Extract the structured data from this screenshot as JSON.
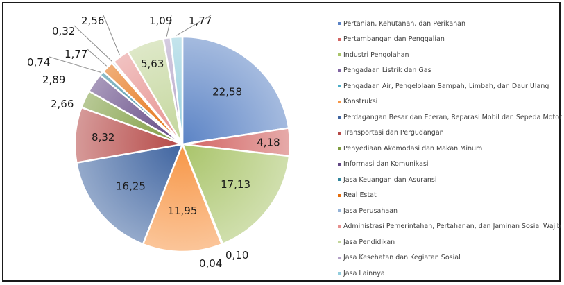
{
  "chart_data": {
    "type": "pie",
    "title": "",
    "slices": [
      {
        "name": "Pertanian, Kehutanan, dan Perikanan",
        "value": 22.58,
        "label": "22,58",
        "color": "#5b83c5"
      },
      {
        "name": "Pertambangan dan Penggalian",
        "value": 4.18,
        "label": "4,18",
        "color": "#d26563"
      },
      {
        "name": "Industri Pengolahan",
        "value": 17.13,
        "label": "17,13",
        "color": "#a9c46a"
      },
      {
        "name": "Pengadaan Listrik dan Gas",
        "value": 0.1,
        "label": "0,10",
        "color": "#8064a2"
      },
      {
        "name": "Pengadaan Air, Pengelolaan Sampah, Limbah, dan Daur Ulang",
        "value": 0.04,
        "label": "0,04",
        "color": "#4bacc6"
      },
      {
        "name": "Konstruksi",
        "value": 11.95,
        "label": "11,95",
        "color": "#f79646"
      },
      {
        "name": "Perdagangan Besar dan Eceran, Reparasi Mobil dan Sepeda Motor",
        "value": 16.25,
        "label": "16,25",
        "color": "#3f64a0"
      },
      {
        "name": "Transportasi dan Pergudangan",
        "value": 8.32,
        "label": "8,32",
        "color": "#b54846"
      },
      {
        "name": "Penyediaan Akomodasi dan Makan Minum",
        "value": 2.66,
        "label": "2,66",
        "color": "#7e9c40"
      },
      {
        "name": "Informasi dan Komunikasi",
        "value": 2.89,
        "label": "2,89",
        "color": "#614683"
      },
      {
        "name": "Jasa Keuangan dan Asuransi",
        "value": 0.74,
        "label": "0,74",
        "color": "#31859c"
      },
      {
        "name": "Real Estat",
        "value": 1.77,
        "label": "1,77",
        "color": "#e46c0a"
      },
      {
        "name": "Jasa Perusahaan",
        "value": 0.32,
        "label": "0,32",
        "color": "#95b3d7"
      },
      {
        "name": "Administrasi Pemerintahan, Pertahanan, dan Jaminan Sosial Wajib",
        "value": 2.56,
        "label": "2,56",
        "color": "#e6908e"
      },
      {
        "name": "Jasa Pendidikan",
        "value": 5.63,
        "label": "5,63",
        "color": "#c3d69b"
      },
      {
        "name": "Jasa Kesehatan dan Kegiatan Sosial",
        "value": 1.09,
        "label": "1,09",
        "color": "#b3a2c7"
      },
      {
        "name": "Jasa Lainnya",
        "value": 1.77,
        "label": "1,77",
        "color": "#93cddd"
      }
    ],
    "legend_position": "right"
  }
}
